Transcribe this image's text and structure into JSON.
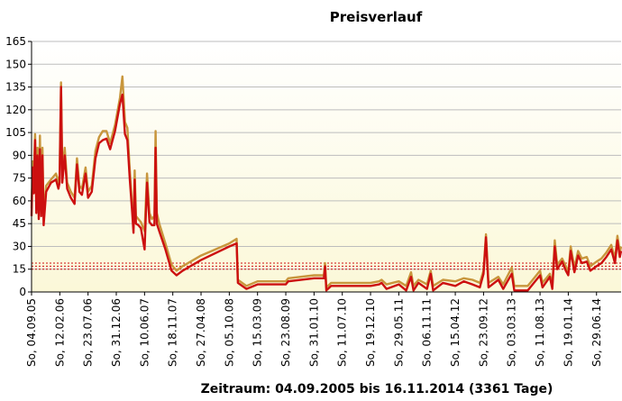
{
  "chart_data": {
    "type": "line",
    "title": "Preisverlauf",
    "caption": "Zeitraum: 04.09.2005 bis 16.11.2014 (3361 Tage)",
    "ylim": [
      0,
      165
    ],
    "yticks": [
      "0",
      "15",
      "30",
      "45",
      "60",
      "75",
      "90",
      "105",
      "120",
      "135",
      "150",
      "165"
    ],
    "ytick_values": [
      0,
      15,
      30,
      45,
      60,
      75,
      90,
      105,
      120,
      135,
      150,
      165
    ],
    "xlim": [
      "2005-09-04",
      "2014-11-16"
    ],
    "xticks": [
      "So, 04.09.05",
      "So, 12.02.06",
      "So, 23.07.06",
      "So, 31.12.06",
      "So, 10.06.07",
      "So, 18.11.07",
      "So, 27.04.08",
      "So, 05.10.08",
      "So, 15.03.09",
      "So, 23.08.09",
      "So, 31.01.10",
      "So, 11.07.10",
      "So, 19.12.10",
      "So, 29.05.11",
      "So, 06.11.11",
      "So, 15.04.12",
      "So, 23.09.12",
      "So, 03.03.13",
      "So, 11.08.13",
      "So, 19.01.14",
      "So, 29.06.14"
    ],
    "xtick_dates": [
      "2005-09-04",
      "2006-02-12",
      "2006-07-23",
      "2006-12-31",
      "2007-06-10",
      "2007-11-18",
      "2008-04-27",
      "2008-10-05",
      "2009-03-15",
      "2009-08-23",
      "2010-01-31",
      "2010-07-11",
      "2010-12-19",
      "2011-05-29",
      "2011-11-06",
      "2012-04-15",
      "2012-09-23",
      "2013-03-03",
      "2013-08-11",
      "2014-01-19",
      "2014-06-29"
    ],
    "reference_lines": [
      15,
      17,
      19
    ],
    "grid": true,
    "colors": {
      "plot_bg_top": "#ffffff",
      "plot_bg_bottom": "#fbf8d8",
      "grid": "#bdbdbd",
      "series_high": "#c8963c",
      "series_low": "#cc1010",
      "ref_line": "#cc1010"
    },
    "series": [
      {
        "role": "high",
        "points": [
          [
            "2005-09-04",
            55
          ],
          [
            "2005-09-10",
            86
          ],
          [
            "2005-09-17",
            75
          ],
          [
            "2005-09-24",
            104
          ],
          [
            "2005-10-01",
            72
          ],
          [
            "2005-10-08",
            95
          ],
          [
            "2005-10-15",
            60
          ],
          [
            "2005-10-22",
            103
          ],
          [
            "2005-10-29",
            58
          ],
          [
            "2005-11-05",
            95
          ],
          [
            "2005-11-12",
            50
          ],
          [
            "2005-11-26",
            70
          ],
          [
            "2005-12-24",
            74
          ],
          [
            "2006-01-21",
            78
          ],
          [
            "2006-02-04",
            72
          ],
          [
            "2006-02-11",
            77
          ],
          [
            "2006-02-19",
            138
          ],
          [
            "2006-02-26",
            80
          ],
          [
            "2006-03-12",
            95
          ],
          [
            "2006-03-26",
            72
          ],
          [
            "2006-04-16",
            66
          ],
          [
            "2006-05-07",
            62
          ],
          [
            "2006-05-21",
            88
          ],
          [
            "2006-06-04",
            70
          ],
          [
            "2006-06-18",
            68
          ],
          [
            "2006-07-09",
            82
          ],
          [
            "2006-07-23",
            66
          ],
          [
            "2006-08-13",
            70
          ],
          [
            "2006-09-03",
            93
          ],
          [
            "2006-09-24",
            102
          ],
          [
            "2006-10-15",
            106
          ],
          [
            "2006-11-05",
            106
          ],
          [
            "2006-11-26",
            98
          ],
          [
            "2006-12-24",
            110
          ],
          [
            "2007-01-21",
            128
          ],
          [
            "2007-02-04",
            142
          ],
          [
            "2007-02-18",
            112
          ],
          [
            "2007-03-04",
            108
          ],
          [
            "2007-03-18",
            80
          ],
          [
            "2007-04-01",
            56
          ],
          [
            "2007-04-08",
            42
          ],
          [
            "2007-04-15",
            80
          ],
          [
            "2007-04-22",
            50
          ],
          [
            "2007-05-06",
            48
          ],
          [
            "2007-05-20",
            46
          ],
          [
            "2007-06-10",
            40
          ],
          [
            "2007-06-24",
            78
          ],
          [
            "2007-07-08",
            52
          ],
          [
            "2007-07-22",
            48
          ],
          [
            "2007-08-05",
            50
          ],
          [
            "2007-08-12",
            106
          ],
          [
            "2007-08-19",
            52
          ],
          [
            "2007-09-02",
            45
          ],
          [
            "2007-10-07",
            32
          ],
          [
            "2007-11-11",
            18
          ],
          [
            "2007-12-09",
            14
          ],
          [
            "2008-01-13",
            17
          ],
          [
            "2008-04-27",
            24
          ],
          [
            "2008-10-05",
            32
          ],
          [
            "2008-11-16",
            35
          ],
          [
            "2008-11-23",
            8
          ],
          [
            "2009-01-11",
            4
          ],
          [
            "2009-03-15",
            7
          ],
          [
            "2009-08-23",
            7
          ],
          [
            "2009-09-06",
            9
          ],
          [
            "2010-01-31",
            11
          ],
          [
            "2010-03-28",
            11
          ],
          [
            "2010-04-04",
            19
          ],
          [
            "2010-04-11",
            3
          ],
          [
            "2010-05-09",
            6
          ],
          [
            "2010-07-11",
            6
          ],
          [
            "2010-12-19",
            6
          ],
          [
            "2011-02-06",
            7
          ],
          [
            "2011-02-20",
            8
          ],
          [
            "2011-03-20",
            5
          ],
          [
            "2011-05-29",
            7
          ],
          [
            "2011-07-10",
            4
          ],
          [
            "2011-08-07",
            13
          ],
          [
            "2011-08-21",
            4
          ],
          [
            "2011-09-18",
            8
          ],
          [
            "2011-11-06",
            5
          ],
          [
            "2011-11-27",
            14
          ],
          [
            "2011-12-11",
            4
          ],
          [
            "2012-02-05",
            8
          ],
          [
            "2012-04-15",
            7
          ],
          [
            "2012-06-03",
            9
          ],
          [
            "2012-07-22",
            8
          ],
          [
            "2012-09-02",
            6
          ],
          [
            "2012-09-23",
            14
          ],
          [
            "2012-10-07",
            38
          ],
          [
            "2012-10-21",
            6
          ],
          [
            "2012-12-16",
            10
          ],
          [
            "2013-01-13",
            5
          ],
          [
            "2013-03-03",
            16
          ],
          [
            "2013-03-17",
            4
          ],
          [
            "2013-06-02",
            4
          ],
          [
            "2013-07-14",
            10
          ],
          [
            "2013-08-11",
            14
          ],
          [
            "2013-08-25",
            6
          ],
          [
            "2013-10-06",
            12
          ],
          [
            "2013-10-20",
            4
          ],
          [
            "2013-11-03",
            34
          ],
          [
            "2013-11-17",
            18
          ],
          [
            "2013-12-15",
            22
          ],
          [
            "2014-01-05",
            17
          ],
          [
            "2014-01-19",
            13
          ],
          [
            "2014-02-02",
            30
          ],
          [
            "2014-02-23",
            16
          ],
          [
            "2014-03-16",
            27
          ],
          [
            "2014-04-06",
            22
          ],
          [
            "2014-05-04",
            23
          ],
          [
            "2014-05-25",
            17
          ],
          [
            "2014-06-29",
            20
          ],
          [
            "2014-07-27",
            22
          ],
          [
            "2014-08-24",
            26
          ],
          [
            "2014-09-21",
            31
          ],
          [
            "2014-10-12",
            22
          ],
          [
            "2014-10-26",
            37
          ],
          [
            "2014-11-09",
            26
          ],
          [
            "2014-11-16",
            30
          ]
        ]
      },
      {
        "role": "low",
        "points": [
          [
            "2005-09-04",
            50
          ],
          [
            "2005-09-10",
            82
          ],
          [
            "2005-09-17",
            65
          ],
          [
            "2005-09-24",
            100
          ],
          [
            "2005-10-01",
            52
          ],
          [
            "2005-10-08",
            90
          ],
          [
            "2005-10-15",
            48
          ],
          [
            "2005-10-22",
            94
          ],
          [
            "2005-10-29",
            50
          ],
          [
            "2005-11-05",
            90
          ],
          [
            "2005-11-12",
            44
          ],
          [
            "2005-11-26",
            66
          ],
          [
            "2005-12-24",
            72
          ],
          [
            "2006-01-21",
            74
          ],
          [
            "2006-02-04",
            68
          ],
          [
            "2006-02-11",
            72
          ],
          [
            "2006-02-19",
            135
          ],
          [
            "2006-02-26",
            72
          ],
          [
            "2006-03-12",
            90
          ],
          [
            "2006-03-26",
            68
          ],
          [
            "2006-04-16",
            62
          ],
          [
            "2006-05-07",
            58
          ],
          [
            "2006-05-21",
            84
          ],
          [
            "2006-06-04",
            66
          ],
          [
            "2006-06-18",
            64
          ],
          [
            "2006-07-09",
            78
          ],
          [
            "2006-07-23",
            62
          ],
          [
            "2006-08-13",
            66
          ],
          [
            "2006-09-03",
            88
          ],
          [
            "2006-09-24",
            98
          ],
          [
            "2006-10-15",
            100
          ],
          [
            "2006-11-05",
            101
          ],
          [
            "2006-11-26",
            94
          ],
          [
            "2006-12-24",
            106
          ],
          [
            "2007-01-21",
            124
          ],
          [
            "2007-02-04",
            130
          ],
          [
            "2007-02-18",
            104
          ],
          [
            "2007-03-04",
            100
          ],
          [
            "2007-03-18",
            74
          ],
          [
            "2007-04-01",
            52
          ],
          [
            "2007-04-08",
            39
          ],
          [
            "2007-04-15",
            74
          ],
          [
            "2007-04-22",
            45
          ],
          [
            "2007-05-06",
            44
          ],
          [
            "2007-05-20",
            42
          ],
          [
            "2007-06-10",
            28
          ],
          [
            "2007-06-24",
            72
          ],
          [
            "2007-07-08",
            46
          ],
          [
            "2007-07-22",
            44
          ],
          [
            "2007-08-05",
            44
          ],
          [
            "2007-08-12",
            95
          ],
          [
            "2007-08-19",
            45
          ],
          [
            "2007-09-02",
            40
          ],
          [
            "2007-10-07",
            28
          ],
          [
            "2007-11-11",
            14
          ],
          [
            "2007-12-09",
            11
          ],
          [
            "2008-01-13",
            14
          ],
          [
            "2008-04-27",
            21
          ],
          [
            "2008-10-05",
            30
          ],
          [
            "2008-11-16",
            32
          ],
          [
            "2008-11-23",
            6
          ],
          [
            "2009-01-11",
            2
          ],
          [
            "2009-03-15",
            5
          ],
          [
            "2009-08-23",
            5
          ],
          [
            "2009-09-06",
            7
          ],
          [
            "2010-01-31",
            9
          ],
          [
            "2010-03-28",
            9
          ],
          [
            "2010-04-04",
            17
          ],
          [
            "2010-04-11",
            1
          ],
          [
            "2010-05-09",
            4
          ],
          [
            "2010-07-11",
            4
          ],
          [
            "2010-12-19",
            4
          ],
          [
            "2011-02-06",
            5
          ],
          [
            "2011-02-20",
            6
          ],
          [
            "2011-03-20",
            2
          ],
          [
            "2011-05-29",
            5
          ],
          [
            "2011-07-10",
            1
          ],
          [
            "2011-08-07",
            10
          ],
          [
            "2011-08-21",
            1
          ],
          [
            "2011-09-18",
            6
          ],
          [
            "2011-11-06",
            2
          ],
          [
            "2011-11-27",
            12
          ],
          [
            "2011-12-11",
            1
          ],
          [
            "2012-02-05",
            6
          ],
          [
            "2012-04-15",
            4
          ],
          [
            "2012-06-03",
            7
          ],
          [
            "2012-07-22",
            5
          ],
          [
            "2012-09-02",
            3
          ],
          [
            "2012-09-23",
            12
          ],
          [
            "2012-10-07",
            36
          ],
          [
            "2012-10-21",
            3
          ],
          [
            "2012-12-16",
            8
          ],
          [
            "2013-01-13",
            2
          ],
          [
            "2013-03-03",
            12
          ],
          [
            "2013-03-17",
            1
          ],
          [
            "2013-06-02",
            1
          ],
          [
            "2013-07-14",
            7
          ],
          [
            "2013-08-11",
            11
          ],
          [
            "2013-08-25",
            3
          ],
          [
            "2013-10-06",
            10
          ],
          [
            "2013-10-20",
            2
          ],
          [
            "2013-11-03",
            30
          ],
          [
            "2013-11-17",
            15
          ],
          [
            "2013-12-15",
            20
          ],
          [
            "2014-01-05",
            14
          ],
          [
            "2014-01-19",
            11
          ],
          [
            "2014-02-02",
            27
          ],
          [
            "2014-02-23",
            13
          ],
          [
            "2014-03-16",
            24
          ],
          [
            "2014-04-06",
            19
          ],
          [
            "2014-05-04",
            20
          ],
          [
            "2014-05-25",
            14
          ],
          [
            "2014-06-29",
            17
          ],
          [
            "2014-07-27",
            19
          ],
          [
            "2014-08-24",
            23
          ],
          [
            "2014-09-21",
            28
          ],
          [
            "2014-10-12",
            19
          ],
          [
            "2014-10-26",
            34
          ],
          [
            "2014-11-09",
            23
          ],
          [
            "2014-11-16",
            27
          ]
        ]
      }
    ]
  }
}
